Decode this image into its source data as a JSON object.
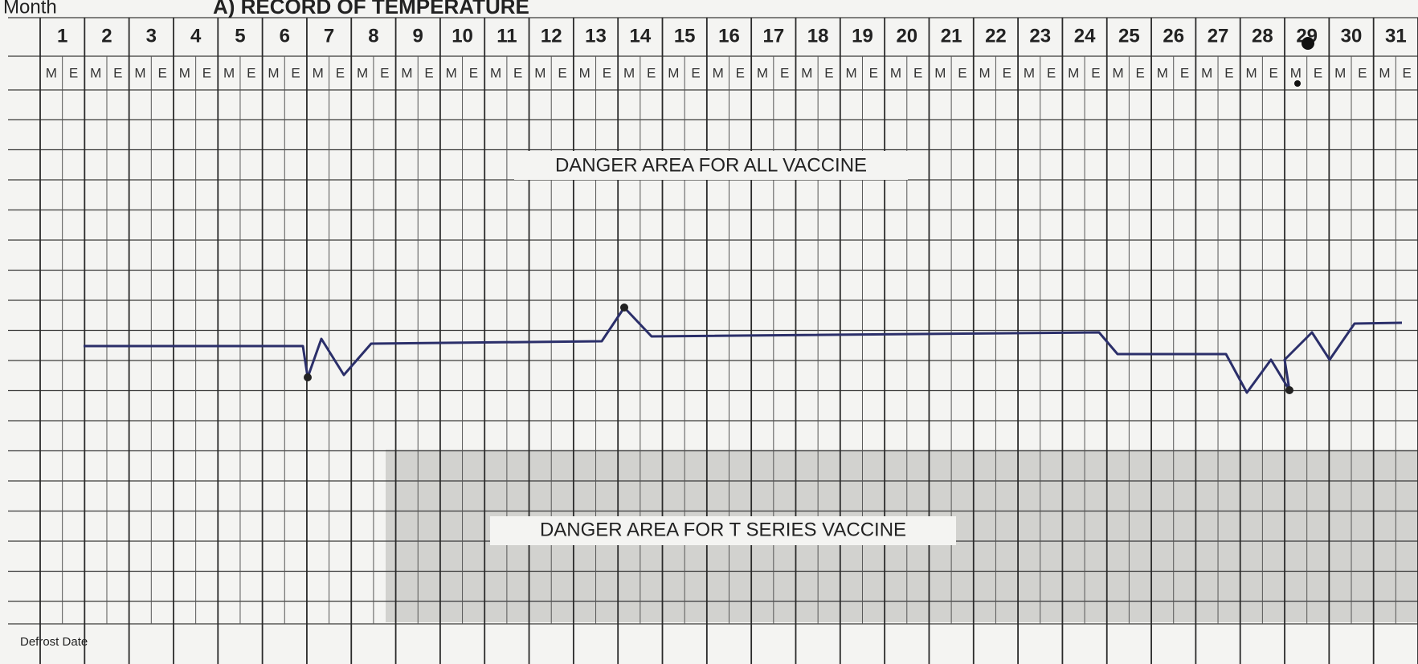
{
  "header": {
    "month_label": "Month",
    "title": "A) RECORD OF TEMPERATURE"
  },
  "days": [
    1,
    2,
    3,
    4,
    5,
    6,
    7,
    8,
    9,
    10,
    11,
    12,
    13,
    14,
    15,
    16,
    17,
    18,
    19,
    20,
    21,
    22,
    23,
    24,
    25,
    26,
    27,
    28,
    29,
    30,
    31
  ],
  "shift_labels": [
    "M",
    "E"
  ],
  "zones": {
    "upper": "DANGER AREA FOR ALL VACCINE",
    "lower": "DANGER AREA FOR T SERIES VACCINE"
  },
  "footer": {
    "defrost_label": "Defrost Date"
  }
}
